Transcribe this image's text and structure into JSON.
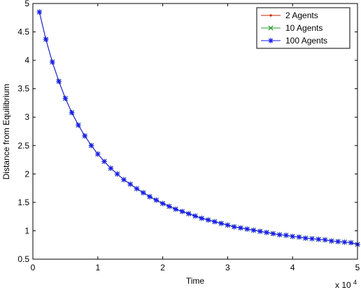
{
  "chart_data": {
    "type": "line",
    "title": "",
    "xlabel": "Time",
    "ylabel": "Distance from Equilibrium",
    "x_exponent_label": "x 10",
    "x_exponent_power": "4",
    "xlim": [
      0,
      50000
    ],
    "ylim": [
      0.5,
      5
    ],
    "grid": false,
    "legend_position": "top-right",
    "x_ticks": [
      0,
      10000,
      20000,
      30000,
      40000,
      50000
    ],
    "x_tick_labels": [
      "0",
      "1",
      "2",
      "3",
      "4",
      "5"
    ],
    "y_ticks": [
      0.5,
      1,
      1.5,
      2,
      2.5,
      3,
      3.5,
      4,
      4.5,
      5
    ],
    "y_tick_labels": [
      "0.5",
      "1",
      "1.5",
      "2",
      "2.5",
      "3",
      "3.5",
      "4",
      "4.5",
      "5"
    ],
    "x": [
      1000,
      2000,
      3000,
      4000,
      5000,
      6000,
      7000,
      8000,
      9000,
      10000,
      11000,
      12000,
      13000,
      14000,
      15000,
      16000,
      17000,
      18000,
      19000,
      20000,
      21000,
      22000,
      23000,
      24000,
      25000,
      26000,
      27000,
      28000,
      29000,
      30000,
      31000,
      32000,
      33000,
      34000,
      35000,
      36000,
      37000,
      38000,
      39000,
      40000,
      41000,
      42000,
      43000,
      44000,
      45000,
      46000,
      47000,
      48000,
      49000,
      50000
    ],
    "series": [
      {
        "name": "2 Agents",
        "color": "#cc2200",
        "marker": "dot",
        "values": [
          4.85,
          4.37,
          3.97,
          3.63,
          3.33,
          3.08,
          2.86,
          2.67,
          2.5,
          2.35,
          2.22,
          2.1,
          2.0,
          1.9,
          1.82,
          1.74,
          1.67,
          1.6,
          1.54,
          1.48,
          1.43,
          1.38,
          1.34,
          1.3,
          1.26,
          1.22,
          1.19,
          1.16,
          1.13,
          1.1,
          1.07,
          1.05,
          1.03,
          1.01,
          0.99,
          0.97,
          0.95,
          0.93,
          0.92,
          0.9,
          0.89,
          0.87,
          0.86,
          0.85,
          0.84,
          0.82,
          0.81,
          0.8,
          0.79,
          0.76
        ]
      },
      {
        "name": "10 Agents",
        "color": "#2a9a2a",
        "marker": "x",
        "values": [
          4.85,
          4.37,
          3.97,
          3.63,
          3.33,
          3.08,
          2.86,
          2.67,
          2.5,
          2.35,
          2.22,
          2.1,
          2.0,
          1.9,
          1.82,
          1.74,
          1.67,
          1.6,
          1.54,
          1.48,
          1.43,
          1.38,
          1.34,
          1.3,
          1.26,
          1.22,
          1.19,
          1.16,
          1.13,
          1.1,
          1.07,
          1.05,
          1.03,
          1.01,
          0.99,
          0.97,
          0.95,
          0.93,
          0.92,
          0.9,
          0.89,
          0.87,
          0.86,
          0.85,
          0.84,
          0.82,
          0.81,
          0.8,
          0.79,
          0.76
        ]
      },
      {
        "name": "100 Agents",
        "color": "#1a1aee",
        "marker": "star",
        "values": [
          4.85,
          4.37,
          3.97,
          3.63,
          3.33,
          3.08,
          2.86,
          2.67,
          2.5,
          2.35,
          2.22,
          2.1,
          2.0,
          1.9,
          1.82,
          1.74,
          1.67,
          1.6,
          1.54,
          1.48,
          1.43,
          1.38,
          1.34,
          1.3,
          1.26,
          1.22,
          1.19,
          1.16,
          1.13,
          1.1,
          1.07,
          1.05,
          1.03,
          1.01,
          0.99,
          0.97,
          0.95,
          0.93,
          0.92,
          0.9,
          0.89,
          0.87,
          0.86,
          0.85,
          0.84,
          0.82,
          0.81,
          0.8,
          0.79,
          0.76
        ]
      }
    ]
  }
}
